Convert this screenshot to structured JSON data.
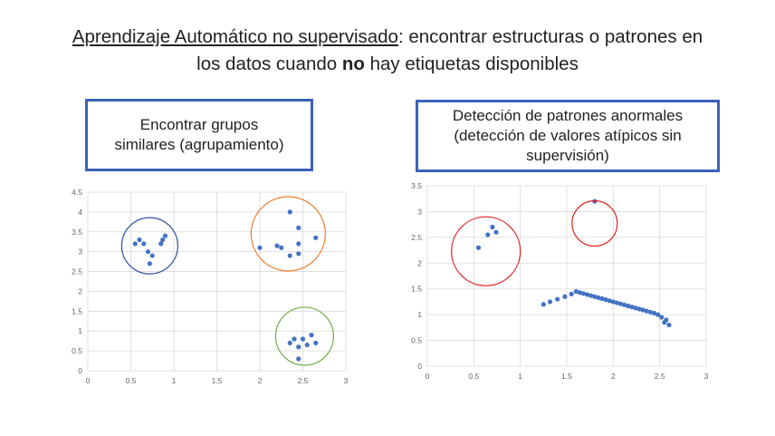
{
  "title": {
    "underlined": "Aprendizaje Automático no supervisado",
    "rest1": ": encontrar estructuras o patrones en",
    "line2a": "los datos cuando ",
    "line2bold": "no",
    "line2b": " hay etiquetas disponibles"
  },
  "box_left": {
    "line1": "Encontrar grupos",
    "line2": "similares (agrupamiento)"
  },
  "box_right": {
    "line1": "Detección de patrones anormales",
    "line2": "(detección de valores atípicos sin",
    "line3": "supervisión)"
  },
  "colors": {
    "points": "#4472c4",
    "circle_blue": "#2f4f9f",
    "circle_orange": "#ed7d31",
    "circle_green": "#70ad47",
    "circle_red": "#e02020",
    "box_border": "#3b62b8"
  },
  "chart_data": [
    {
      "type": "scatter",
      "xlim": [
        0,
        3
      ],
      "ylim": [
        0,
        4.5
      ],
      "x_ticks": [
        "0",
        "0.5",
        "1",
        "1.5",
        "2",
        "2.5",
        "3"
      ],
      "y_ticks": [
        "0",
        "0.5",
        "1",
        "1.5",
        "2",
        "2.5",
        "3",
        "3.5",
        "4",
        "4.5"
      ],
      "grid": true,
      "points": [
        [
          0.55,
          3.2
        ],
        [
          0.6,
          3.3
        ],
        [
          0.65,
          3.2
        ],
        [
          0.7,
          3.0
        ],
        [
          0.72,
          2.7
        ],
        [
          0.75,
          2.9
        ],
        [
          0.85,
          3.2
        ],
        [
          0.87,
          3.3
        ],
        [
          0.9,
          3.4
        ],
        [
          2.0,
          3.1
        ],
        [
          2.2,
          3.15
        ],
        [
          2.25,
          3.1
        ],
        [
          2.35,
          4.0
        ],
        [
          2.35,
          2.9
        ],
        [
          2.45,
          3.6
        ],
        [
          2.45,
          3.2
        ],
        [
          2.45,
          2.95
        ],
        [
          2.65,
          3.35
        ],
        [
          2.35,
          0.7
        ],
        [
          2.4,
          0.8
        ],
        [
          2.45,
          0.6
        ],
        [
          2.5,
          0.8
        ],
        [
          2.55,
          0.65
        ],
        [
          2.6,
          0.9
        ],
        [
          2.65,
          0.7
        ],
        [
          2.45,
          0.3
        ]
      ],
      "circles": [
        {
          "cx": 0.72,
          "cy": 3.15,
          "color": "blue"
        },
        {
          "cx": 2.33,
          "cy": 3.45,
          "color": "orange"
        },
        {
          "cx": 2.52,
          "cy": 0.87,
          "color": "green"
        }
      ]
    },
    {
      "type": "scatter",
      "xlim": [
        0,
        3
      ],
      "ylim": [
        0,
        3.5
      ],
      "x_ticks": [
        "0",
        "0.5",
        "1",
        "1.5",
        "2",
        "2.5",
        "3"
      ],
      "y_ticks": [
        "0",
        "0.5",
        "1",
        "1.5",
        "2",
        "2.5",
        "3",
        "3.5"
      ],
      "grid": true,
      "points": [
        [
          0.55,
          2.3
        ],
        [
          0.65,
          2.55
        ],
        [
          0.7,
          2.7
        ],
        [
          0.74,
          2.6
        ],
        [
          1.8,
          3.2
        ],
        [
          1.25,
          1.2
        ],
        [
          1.32,
          1.25
        ],
        [
          1.4,
          1.3
        ],
        [
          1.48,
          1.35
        ],
        [
          1.55,
          1.4
        ],
        [
          1.6,
          1.45
        ],
        [
          1.64,
          1.43
        ],
        [
          1.68,
          1.41
        ],
        [
          1.72,
          1.39
        ],
        [
          1.76,
          1.37
        ],
        [
          1.8,
          1.35
        ],
        [
          1.84,
          1.33
        ],
        [
          1.88,
          1.31
        ],
        [
          1.92,
          1.29
        ],
        [
          1.96,
          1.27
        ],
        [
          2.0,
          1.25
        ],
        [
          2.04,
          1.23
        ],
        [
          2.08,
          1.21
        ],
        [
          2.12,
          1.19
        ],
        [
          2.16,
          1.17
        ],
        [
          2.2,
          1.15
        ],
        [
          2.24,
          1.13
        ],
        [
          2.28,
          1.11
        ],
        [
          2.32,
          1.09
        ],
        [
          2.36,
          1.07
        ],
        [
          2.4,
          1.05
        ],
        [
          2.44,
          1.03
        ],
        [
          2.48,
          1.0
        ],
        [
          2.52,
          0.95
        ],
        [
          2.55,
          0.85
        ],
        [
          2.57,
          0.9
        ],
        [
          2.6,
          0.8
        ]
      ],
      "circles": [
        {
          "cx": 0.63,
          "cy": 2.23,
          "color": "red"
        },
        {
          "cx": 1.8,
          "cy": 2.77,
          "color": "red"
        }
      ]
    }
  ]
}
